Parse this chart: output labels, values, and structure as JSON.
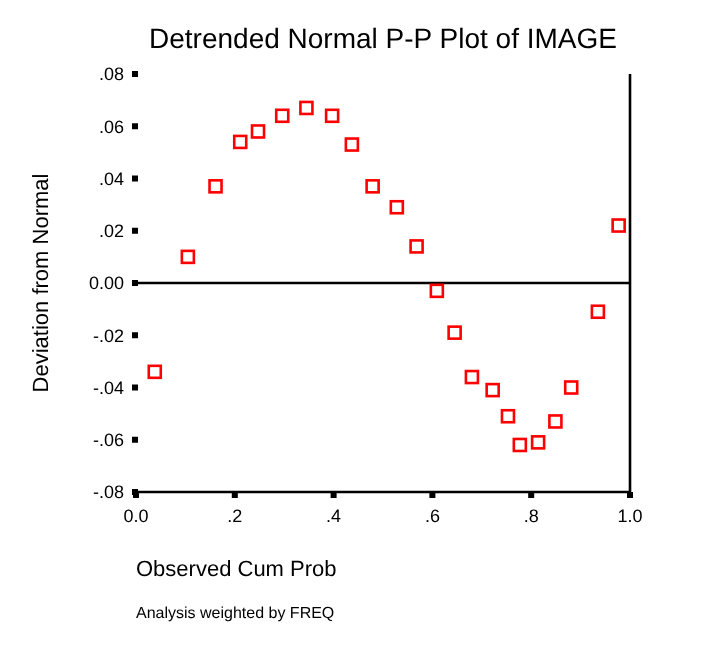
{
  "chart_data": {
    "type": "scatter",
    "title": "Detrended Normal P-P Plot of IMAGE",
    "xlabel": "Observed Cum Prob",
    "ylabel": "Deviation from Normal",
    "annotations": [
      "Analysis weighted by FREQ"
    ],
    "x": [
      0.038,
      0.105,
      0.161,
      0.211,
      0.247,
      0.296,
      0.345,
      0.397,
      0.437,
      0.479,
      0.528,
      0.568,
      0.609,
      0.645,
      0.68,
      0.722,
      0.753,
      0.777,
      0.814,
      0.849,
      0.881,
      0.935,
      0.977
    ],
    "series": [
      {
        "color": "#ff0000",
        "values": [
          -0.034,
          0.01,
          0.037,
          0.054,
          0.058,
          0.064,
          0.067,
          0.064,
          0.053,
          0.037,
          0.029,
          0.014,
          -0.003,
          -0.019,
          -0.036,
          -0.041,
          -0.051,
          -0.062,
          -0.061,
          -0.053,
          -0.04,
          -0.011,
          0.022
        ]
      }
    ],
    "xlim": [
      0,
      1
    ],
    "ylim": [
      -0.08,
      0.08
    ],
    "xticks": [
      {
        "value": 0,
        "label": "0.0"
      },
      {
        "value": 0.2,
        "label": ".2"
      },
      {
        "value": 0.4,
        "label": ".4"
      },
      {
        "value": 0.6,
        "label": ".6"
      },
      {
        "value": 0.8,
        "label": ".8"
      },
      {
        "value": 1,
        "label": "1.0"
      }
    ],
    "yticks": [
      {
        "value": -0.08,
        "label": "-.08"
      },
      {
        "value": -0.06,
        "label": "-.06"
      },
      {
        "value": -0.04,
        "label": "-.04"
      },
      {
        "value": -0.02,
        "label": "-.02"
      },
      {
        "value": 0,
        "label": "0.00"
      },
      {
        "value": 0.02,
        "label": ".02"
      },
      {
        "value": 0.04,
        "label": ".04"
      },
      {
        "value": 0.06,
        "label": ".06"
      },
      {
        "value": 0.08,
        "label": ".08"
      }
    ],
    "ref_lines": [
      {
        "axis": "y",
        "value": 0,
        "color": "#000000"
      }
    ],
    "marker": "square"
  }
}
